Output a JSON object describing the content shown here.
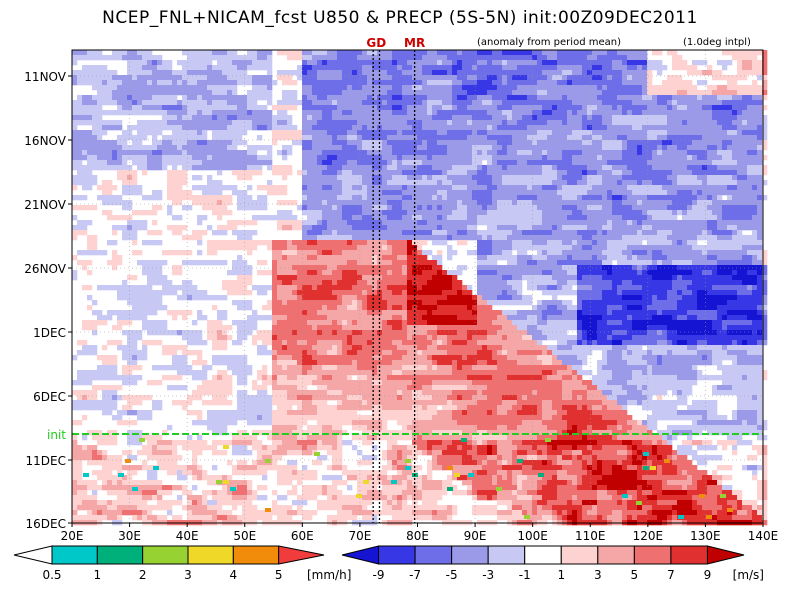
{
  "chart_data": {
    "type": "heatmap",
    "title": "NCEP_FNL+NICAM_fcst U850 & PRECP (5S-5N) init:00Z09DEC2011",
    "annotation_left": "(anomaly from period mean)",
    "annotation_right": "(1.0deg intpl)",
    "x_axis": {
      "ticks": [
        "20E",
        "30E",
        "40E",
        "50E",
        "60E",
        "70E",
        "80E",
        "90E",
        "100E",
        "110E",
        "120E",
        "130E",
        "140E"
      ],
      "range": [
        20,
        140
      ]
    },
    "y_axis": {
      "ticks": [
        "11NOV",
        "16NOV",
        "21NOV",
        "26NOV",
        "1DEC",
        "6DEC",
        "11DEC",
        "16DEC"
      ],
      "range_days": [
        0,
        36
      ]
    },
    "marker_lines": [
      {
        "label": "GD",
        "lons": [
          72.3,
          73.4
        ],
        "color": "#cc0000"
      },
      {
        "label": "MR",
        "lons": [
          79.5
        ],
        "color": "#cc0000"
      }
    ],
    "init_line": {
      "label": "init",
      "date": "9DEC",
      "color": "#22cc22"
    },
    "u850": {
      "units": "[m/s]",
      "levels": [
        "-9",
        "-7",
        "-5",
        "-3",
        "-1",
        "1",
        "3",
        "5",
        "7",
        "9"
      ],
      "colors": [
        "#1414d2",
        "#3737e6",
        "#6e6ee8",
        "#9a9ae8",
        "#c8c8f5",
        "#ffffff",
        "#ffd2d2",
        "#f5a6a6",
        "#ee7070",
        "#e03030",
        "#c00000"
      ]
    },
    "precip": {
      "units": "[mm/h]",
      "levels": [
        "0.5",
        "1",
        "2",
        "3",
        "4",
        "5"
      ],
      "colors": [
        "#00c8c8",
        "#00b07a",
        "#96d232",
        "#f0d828",
        "#f08c0a",
        "#f03c3c"
      ]
    }
  }
}
